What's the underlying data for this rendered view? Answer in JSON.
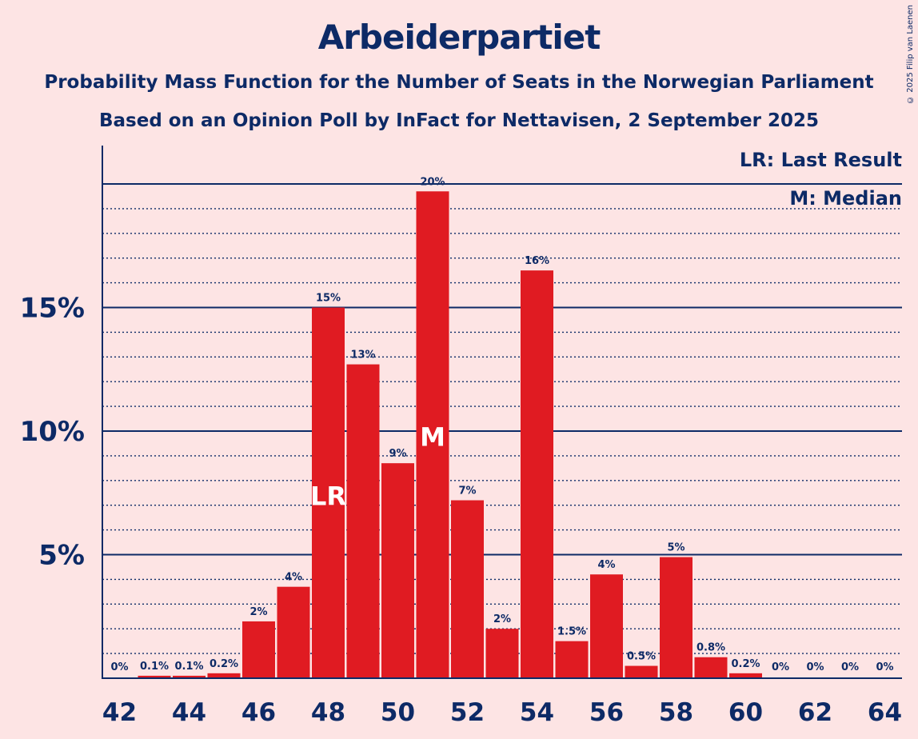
{
  "title": "Arbeiderpartiet",
  "subtitle1": "Probability Mass Function for the Number of Seats in the Norwegian Parliament",
  "subtitle2": "Based on an Opinion Poll by InFact for Nettavisen, 2 September 2025",
  "copyright": "© 2025 Filip van Laenen",
  "legend": {
    "lr": "LR: Last Result",
    "m": "M: Median"
  },
  "colors": {
    "bar": "#e01b22",
    "text": "#0d2a66",
    "background": "#fde4e4"
  },
  "chart_data": {
    "type": "bar",
    "x": [
      42,
      43,
      44,
      45,
      46,
      47,
      48,
      49,
      50,
      51,
      52,
      53,
      54,
      55,
      56,
      57,
      58,
      59,
      60,
      61,
      62,
      63,
      64
    ],
    "values": [
      0,
      0.1,
      0.1,
      0.2,
      2.3,
      3.7,
      15.0,
      12.7,
      8.7,
      19.7,
      7.2,
      2.0,
      16.5,
      1.5,
      4.2,
      0.5,
      4.9,
      0.85,
      0.2,
      0,
      0,
      0,
      0
    ],
    "data_labels": [
      "0%",
      "0.1%",
      "0.1%",
      "0.2%",
      "2%",
      "4%",
      "15%",
      "13%",
      "9%",
      "20%",
      "7%",
      "2%",
      "16%",
      "1.5%",
      "4%",
      "0.5%",
      "5%",
      "0.8%",
      "0.2%",
      "0%",
      "0%",
      "0%",
      "0%"
    ],
    "x_ticks": [
      "42",
      "44",
      "46",
      "48",
      "50",
      "52",
      "54",
      "56",
      "58",
      "60",
      "62",
      "64"
    ],
    "y_ticks": [
      {
        "value": 5,
        "label": "5%"
      },
      {
        "value": 10,
        "label": "10%"
      },
      {
        "value": 15,
        "label": "15%"
      }
    ],
    "ylim": [
      0,
      21.5
    ],
    "markers": [
      {
        "x": 48,
        "label": "LR"
      },
      {
        "x": 51,
        "label": "M"
      }
    ],
    "grid": "dotted every 1%, solid at 5% steps",
    "legend_placement": "top-right"
  }
}
